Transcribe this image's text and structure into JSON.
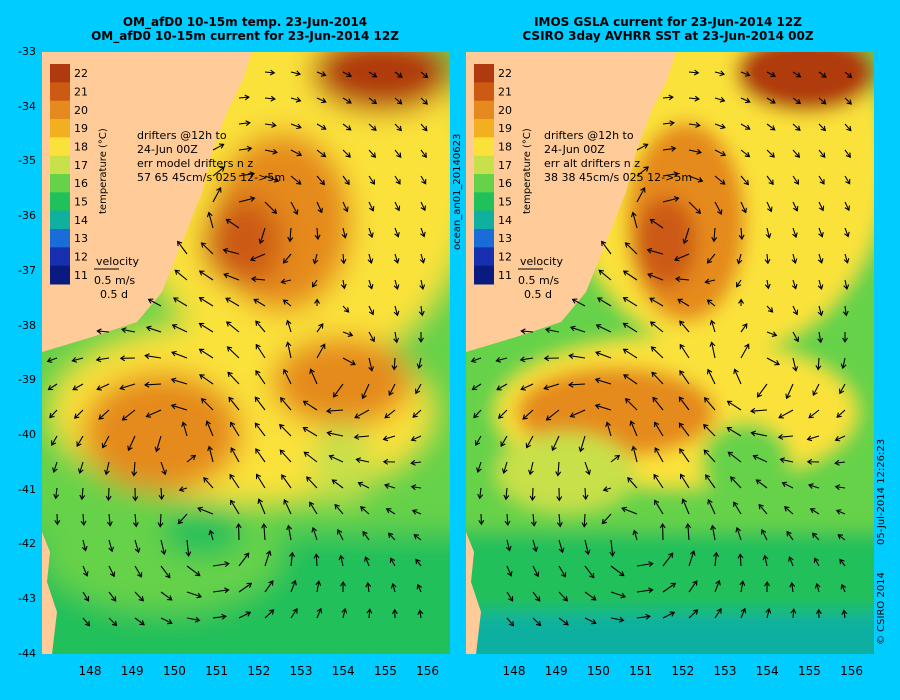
{
  "titles": {
    "left": [
      "OM_afD0 10-15m temp. 23-Jun-2014",
      "OM_afD0 10-15m current for 23-Jun-2014 12Z"
    ],
    "right": [
      "IMOS GSLA current for 23-Jun-2014 12Z",
      "CSIRO 3day AVHRR SST at 23-Jun-2014 00Z"
    ]
  },
  "lat_labels": [
    "-33",
    "-34",
    "-35",
    "-36",
    "-37",
    "-38",
    "-39",
    "-40",
    "-41",
    "-42",
    "-43",
    "-44"
  ],
  "lon_labels": [
    "148",
    "149",
    "150",
    "151",
    "152",
    "153",
    "154",
    "155",
    "156"
  ],
  "colorbar": {
    "title": "temperature (°C)",
    "ticks": [
      "22",
      "21",
      "20",
      "19",
      "18",
      "17",
      "16",
      "15",
      "14",
      "13",
      "12",
      "11"
    ],
    "colors": [
      "#b03a10",
      "#cc5a12",
      "#e58a1e",
      "#f2b020",
      "#fbe23a",
      "#c8e04a",
      "#66d24a",
      "#20c05a",
      "#10b0a0",
      "#1a6cd8",
      "#1630b0",
      "#0a1a80"
    ]
  },
  "annotations": {
    "left": [
      "drifters @12h to",
      "24-Jun 00Z",
      "err model drifters n z",
      "57   65    45cm/s 025 12->5m"
    ],
    "right": [
      "drifters @12h to",
      "24-Jun 00Z",
      "err alt drifters n z",
      "38 38 45cm/s 025 12->5m"
    ]
  },
  "velocity_key": {
    "label": "velocity",
    "speed": "0.5 m/s",
    "duration": "0.5 d"
  },
  "side_text": {
    "middle": "ocean_an01_20140623",
    "right_date": "05-Jul-2014 12:26:23",
    "right_credit": "© CSIRO 2014"
  },
  "colors": {
    "background": "#00ccff",
    "land": "#ffcc99",
    "drifter": "#cc33cc"
  }
}
